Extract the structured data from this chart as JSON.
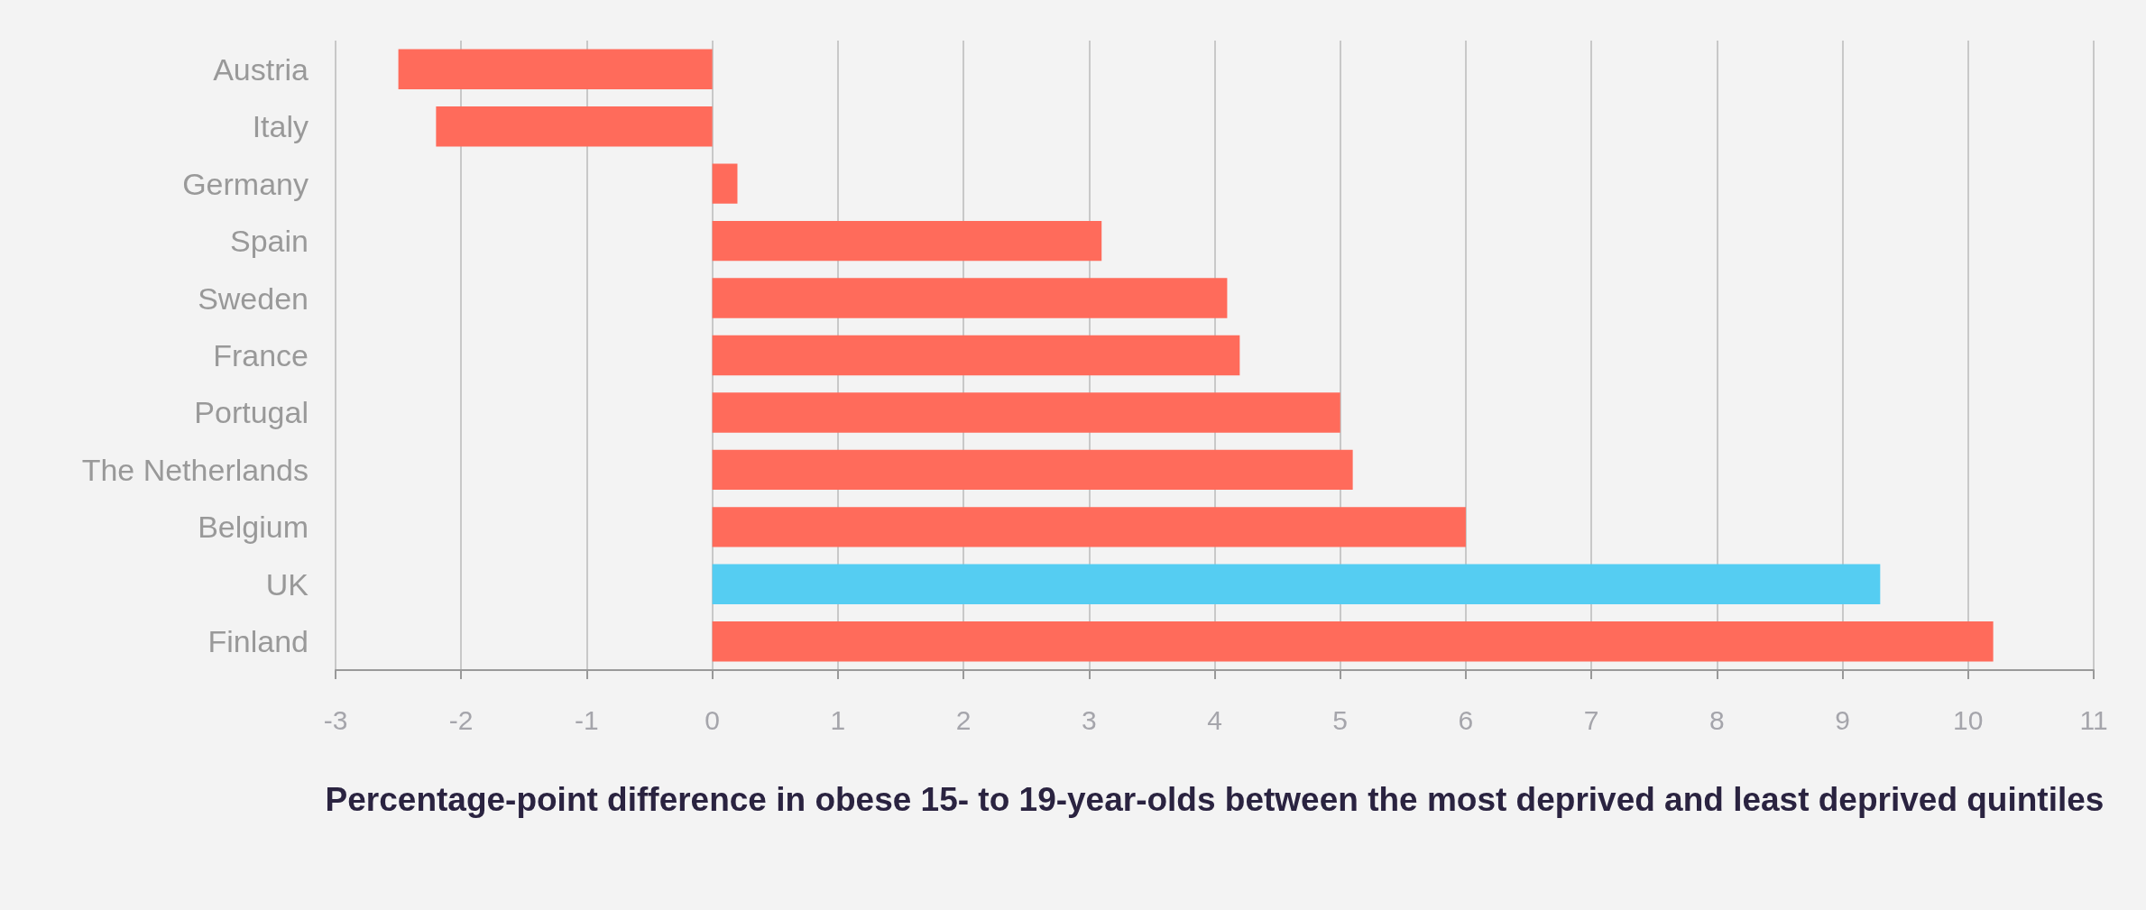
{
  "chart_data": {
    "type": "bar",
    "orientation": "horizontal",
    "categories": [
      "Austria",
      "Italy",
      "Germany",
      "Spain",
      "Sweden",
      "France",
      "Portugal",
      "The Netherlands",
      "Belgium",
      "UK",
      "Finland"
    ],
    "values": [
      -2.5,
      -2.2,
      0.2,
      3.1,
      4.1,
      4.2,
      5.0,
      5.1,
      6.0,
      9.3,
      10.2
    ],
    "colors": [
      "#ff6b5b",
      "#ff6b5b",
      "#ff6b5b",
      "#ff6b5b",
      "#ff6b5b",
      "#ff6b5b",
      "#ff6b5b",
      "#ff6b5b",
      "#ff6b5b",
      "#55cdf2",
      "#ff6b5b"
    ],
    "xlabel": "Percentage-point difference in obese 15- to 19-year-olds between the most deprived and least deprived quintiles",
    "xlim": [
      -3,
      11
    ],
    "xticks": [
      -3,
      -2,
      -1,
      0,
      1,
      2,
      3,
      4,
      5,
      6,
      7,
      8,
      9,
      10,
      11
    ],
    "grid": "x"
  }
}
